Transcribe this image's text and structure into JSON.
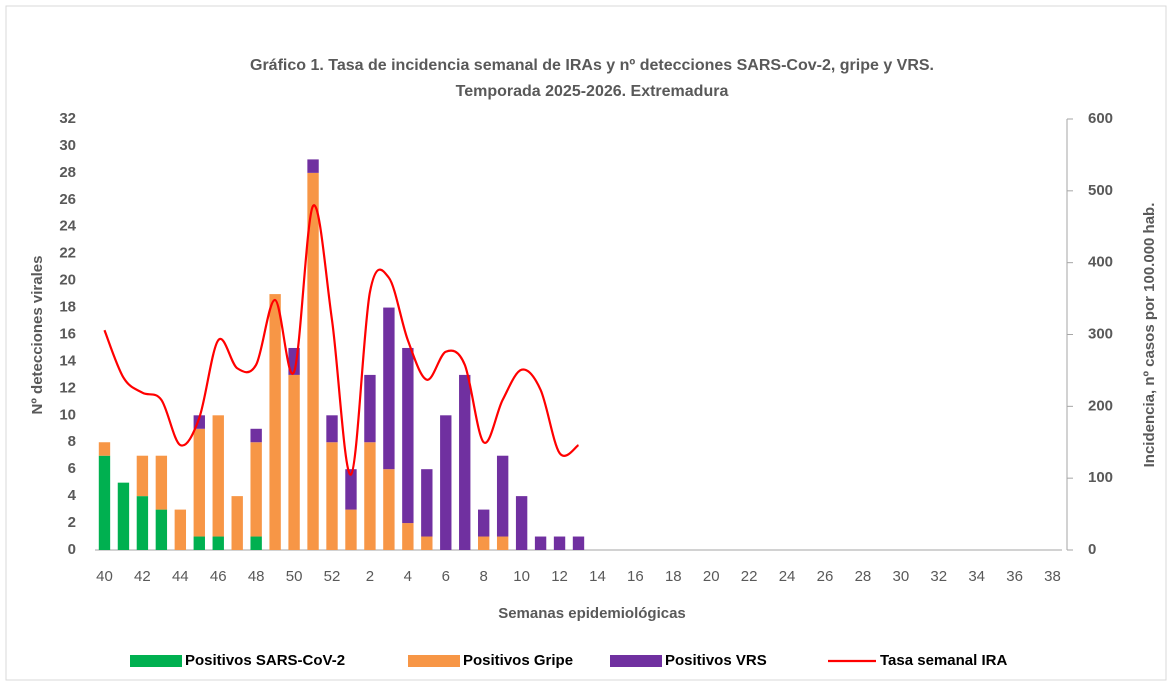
{
  "chart_data": {
    "type": "bar-line",
    "title": [
      "Gráfico 1. Tasa de incidencia semanal de IRAs y nº detecciones SARS-Cov-2, gripe y VRS.",
      "Temporada 2025-2026. Extremadura"
    ],
    "x_label": "Semanas epidemiológicas",
    "y_label": "Nº detecciones virales",
    "y2_label": "Incidencia, nº casos por 100.000 hab.",
    "stacked": true,
    "categories": [
      "40",
      null,
      "42",
      null,
      "44",
      null,
      "46",
      null,
      "48",
      null,
      "50",
      null,
      "52",
      null,
      "2",
      null,
      "4",
      null,
      "6",
      null,
      "8",
      null,
      "10",
      null,
      "12",
      null,
      "14",
      null,
      "16",
      null,
      "18",
      null,
      "20",
      null,
      "22",
      null,
      "24",
      null,
      "26",
      null,
      "28",
      null,
      "30",
      null,
      "32",
      null,
      "34",
      null,
      "36",
      null,
      "38"
    ],
    "series": [
      {
        "name": "Positivos SARS-CoV-2",
        "type": "bar",
        "color": "#00b050",
        "values": [
          7,
          5,
          4,
          3,
          0,
          1,
          1,
          0,
          1,
          0,
          0,
          0,
          0,
          0,
          0,
          0,
          0,
          0,
          0,
          0,
          0,
          0,
          0,
          0,
          0,
          0,
          null,
          null,
          null,
          null,
          null,
          null,
          null,
          null,
          null,
          null,
          null,
          null,
          null,
          null,
          null,
          null,
          null,
          null,
          null,
          null,
          null,
          null,
          null,
          null,
          null
        ]
      },
      {
        "name": "Positivos Gripe",
        "type": "bar",
        "color": "#f79646",
        "values": [
          1,
          0,
          3,
          4,
          3,
          8,
          9,
          4,
          7,
          19,
          13,
          28,
          8,
          3,
          8,
          6,
          2,
          1,
          0,
          0,
          1,
          1,
          0,
          0,
          0,
          0,
          null,
          null,
          null,
          null,
          null,
          null,
          null,
          null,
          null,
          null,
          null,
          null,
          null,
          null,
          null,
          null,
          null,
          null,
          null,
          null,
          null,
          null,
          null,
          null,
          null
        ]
      },
      {
        "name": "Positivos VRS",
        "type": "bar",
        "color": "#7030a0",
        "values": [
          0,
          0,
          0,
          0,
          0,
          1,
          0,
          0,
          1,
          0,
          2,
          1,
          2,
          3,
          5,
          12,
          13,
          5,
          10,
          13,
          2,
          6,
          4,
          1,
          1,
          1,
          null,
          null,
          null,
          null,
          null,
          null,
          null,
          null,
          null,
          null,
          null,
          null,
          null,
          null,
          null,
          null,
          null,
          null,
          null,
          null,
          null,
          null,
          null,
          null,
          null
        ]
      },
      {
        "name": "Tasa semanal IRA",
        "type": "line",
        "axis": "y2",
        "color": "#ff0000",
        "values": [
          306,
          240,
          219,
          209,
          146,
          184,
          292,
          253,
          258,
          348,
          248,
          479,
          320,
          105,
          359,
          379,
          292,
          237,
          276,
          258,
          150,
          209,
          251,
          223,
          135,
          146,
          null,
          null,
          null,
          null,
          null,
          null,
          null,
          null,
          null,
          null,
          null,
          null,
          null,
          null,
          null,
          null,
          null,
          null,
          null,
          null,
          null,
          null,
          null,
          null,
          null
        ]
      }
    ],
    "ylim": [
      0,
      32
    ],
    "yticks": [
      0,
      2,
      4,
      6,
      8,
      10,
      12,
      14,
      16,
      18,
      20,
      22,
      24,
      26,
      28,
      30,
      32
    ],
    "y2lim": [
      0,
      600
    ],
    "y2ticks": [
      0,
      100,
      200,
      300,
      400,
      500,
      600
    ],
    "legend": "bottom"
  }
}
